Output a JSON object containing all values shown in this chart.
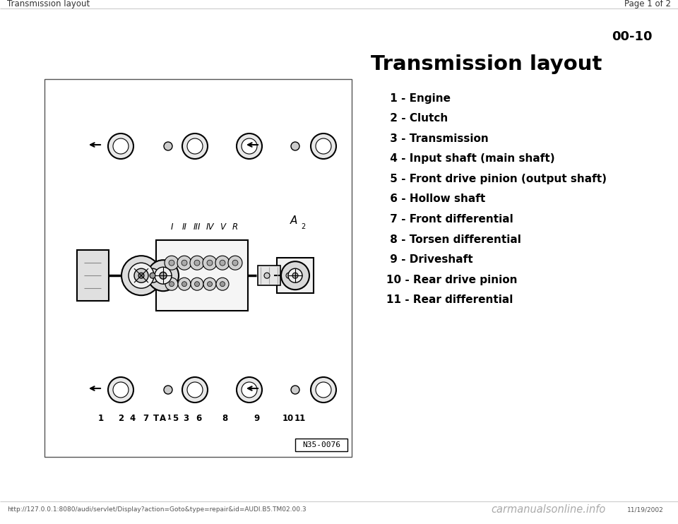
{
  "bg_color": "#ffffff",
  "header_left": "Transmission layout",
  "header_right": "Page 1 of 2",
  "page_number": "00-10",
  "title": "Transmission layout",
  "items": [
    " 1 - Engine",
    " 2 - Clutch",
    " 3 - Transmission",
    " 4 - Input shaft (main shaft)",
    " 5 - Front drive pinion (output shaft)",
    " 6 - Hollow shaft",
    " 7 - Front differential",
    " 8 - Torsen differential",
    " 9 - Driveshaft",
    "10 - Rear drive pinion",
    "11 - Rear differential"
  ],
  "footer_url": "http://127.0.0.1:8080/audi/servlet/Display?action=Goto&type=repair&id=AUDI.B5.TM02.00.3",
  "footer_right": "carmanualsonline.info",
  "footer_date": "11/19/2002",
  "diagram_ref": "N35-0076",
  "gear_labels": [
    "I",
    "II",
    "III",
    "IV",
    "V",
    "R"
  ]
}
